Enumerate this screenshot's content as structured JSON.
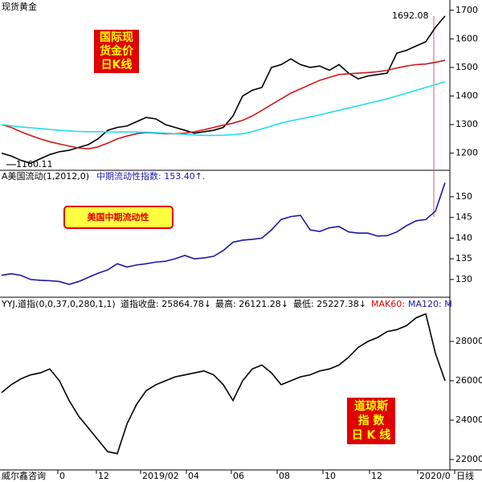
{
  "title": "现货黄金",
  "chart_data": [
    {
      "type": "line",
      "annotations": {
        "high": 1692.08,
        "low": 1160.11,
        "box": [
          "国际现",
          "货金价",
          "日K线"
        ]
      },
      "ylim": [
        1140,
        1736
      ],
      "yticks": [
        1200,
        1300,
        1400,
        1500,
        1600,
        1700
      ],
      "series": [
        {
          "color": "#000000",
          "values": [
            1200,
            1190,
            1175,
            1165,
            1180,
            1195,
            1205,
            1210,
            1220,
            1230,
            1250,
            1280,
            1290,
            1295,
            1310,
            1325,
            1320,
            1300,
            1290,
            1280,
            1270,
            1275,
            1280,
            1290,
            1330,
            1400,
            1420,
            1430,
            1500,
            1510,
            1530,
            1510,
            1500,
            1505,
            1490,
            1510,
            1480,
            1460,
            1470,
            1475,
            1480,
            1550,
            1560,
            1575,
            1590,
            1640,
            1680
          ]
        },
        {
          "color": "#d01818",
          "values": [
            1300,
            1290,
            1275,
            1262,
            1250,
            1240,
            1232,
            1225,
            1218,
            1215,
            1222,
            1235,
            1250,
            1260,
            1268,
            1272,
            1270,
            1268,
            1268,
            1270,
            1275,
            1282,
            1290,
            1298,
            1305,
            1315,
            1330,
            1350,
            1370,
            1390,
            1410,
            1425,
            1440,
            1455,
            1465,
            1475,
            1478,
            1480,
            1482,
            1485,
            1490,
            1498,
            1505,
            1510,
            1512,
            1518,
            1525
          ]
        },
        {
          "color": "#22dde8",
          "values": [
            1300,
            1296,
            1292,
            1289,
            1286,
            1283,
            1280,
            1278,
            1276,
            1275,
            1275,
            1274,
            1274,
            1274,
            1274,
            1273,
            1272,
            1270,
            1268,
            1266,
            1264,
            1262,
            1262,
            1263,
            1265,
            1268,
            1275,
            1285,
            1295,
            1305,
            1313,
            1320,
            1327,
            1334,
            1342,
            1350,
            1358,
            1366,
            1374,
            1382,
            1390,
            1400,
            1410,
            1420,
            1430,
            1440,
            1450
          ]
        }
      ]
    },
    {
      "type": "line",
      "annotations": {
        "indicator": "A美国流动(1,2012,0)",
        "reading": "中期流动性指数: 153.40↑.",
        "box": "美国中期流动性"
      },
      "ylim": [
        125.7,
        156.4
      ],
      "yticks": [
        130,
        135,
        140,
        145,
        150
      ],
      "series": [
        {
          "color": "#1a1aa8",
          "values": [
            131,
            131.4,
            131,
            130,
            129.8,
            129.7,
            129.5,
            128.8,
            129.5,
            130.5,
            131.5,
            132.3,
            133.8,
            133,
            133.5,
            133.8,
            134.2,
            134.4,
            135,
            135.8,
            135,
            135.2,
            135.6,
            137,
            139,
            139.5,
            139.7,
            140,
            142,
            144.5,
            145.2,
            145.5,
            142,
            141.6,
            142.5,
            142.8,
            141.5,
            141.2,
            141.2,
            140.5,
            140.6,
            141.5,
            143,
            144.2,
            144.5,
            146.5,
            153.4
          ]
        }
      ]
    },
    {
      "type": "line",
      "annotations": {
        "indicator": "YYJ.道指(0,0,37,0,280,1,1)",
        "close": "道指收盘: 25864.78↓",
        "high": "最高: 26121.28↓",
        "low": "最低: 25227.38↓",
        "mak60": "MAK60:",
        "ma120": "MA120: M",
        "box": [
          "道琼斯",
          "指  数",
          "日 K 线"
        ]
      },
      "ylim": [
        21470,
        30245
      ],
      "yticks": [
        22000,
        24000,
        26000,
        28000
      ],
      "series": [
        {
          "color": "#000000",
          "values": [
            25400,
            25800,
            26100,
            26300,
            26400,
            26600,
            26000,
            25000,
            24200,
            23600,
            23000,
            22400,
            22300,
            23800,
            24800,
            25500,
            25800,
            26000,
            26200,
            26300,
            26400,
            26500,
            26300,
            25800,
            25000,
            26000,
            26600,
            26800,
            26400,
            25800,
            26000,
            26200,
            26300,
            26500,
            26600,
            26800,
            27200,
            27700,
            28000,
            28200,
            28500,
            28600,
            28800,
            29200,
            29400,
            27400,
            26000
          ]
        }
      ]
    }
  ],
  "footer": {
    "source": "威尔鑫咨询",
    "x_labels": [
      "0",
      "12",
      "2019/02",
      "04",
      "06",
      "08",
      "10",
      "12",
      "2020/0",
      "日线"
    ]
  }
}
